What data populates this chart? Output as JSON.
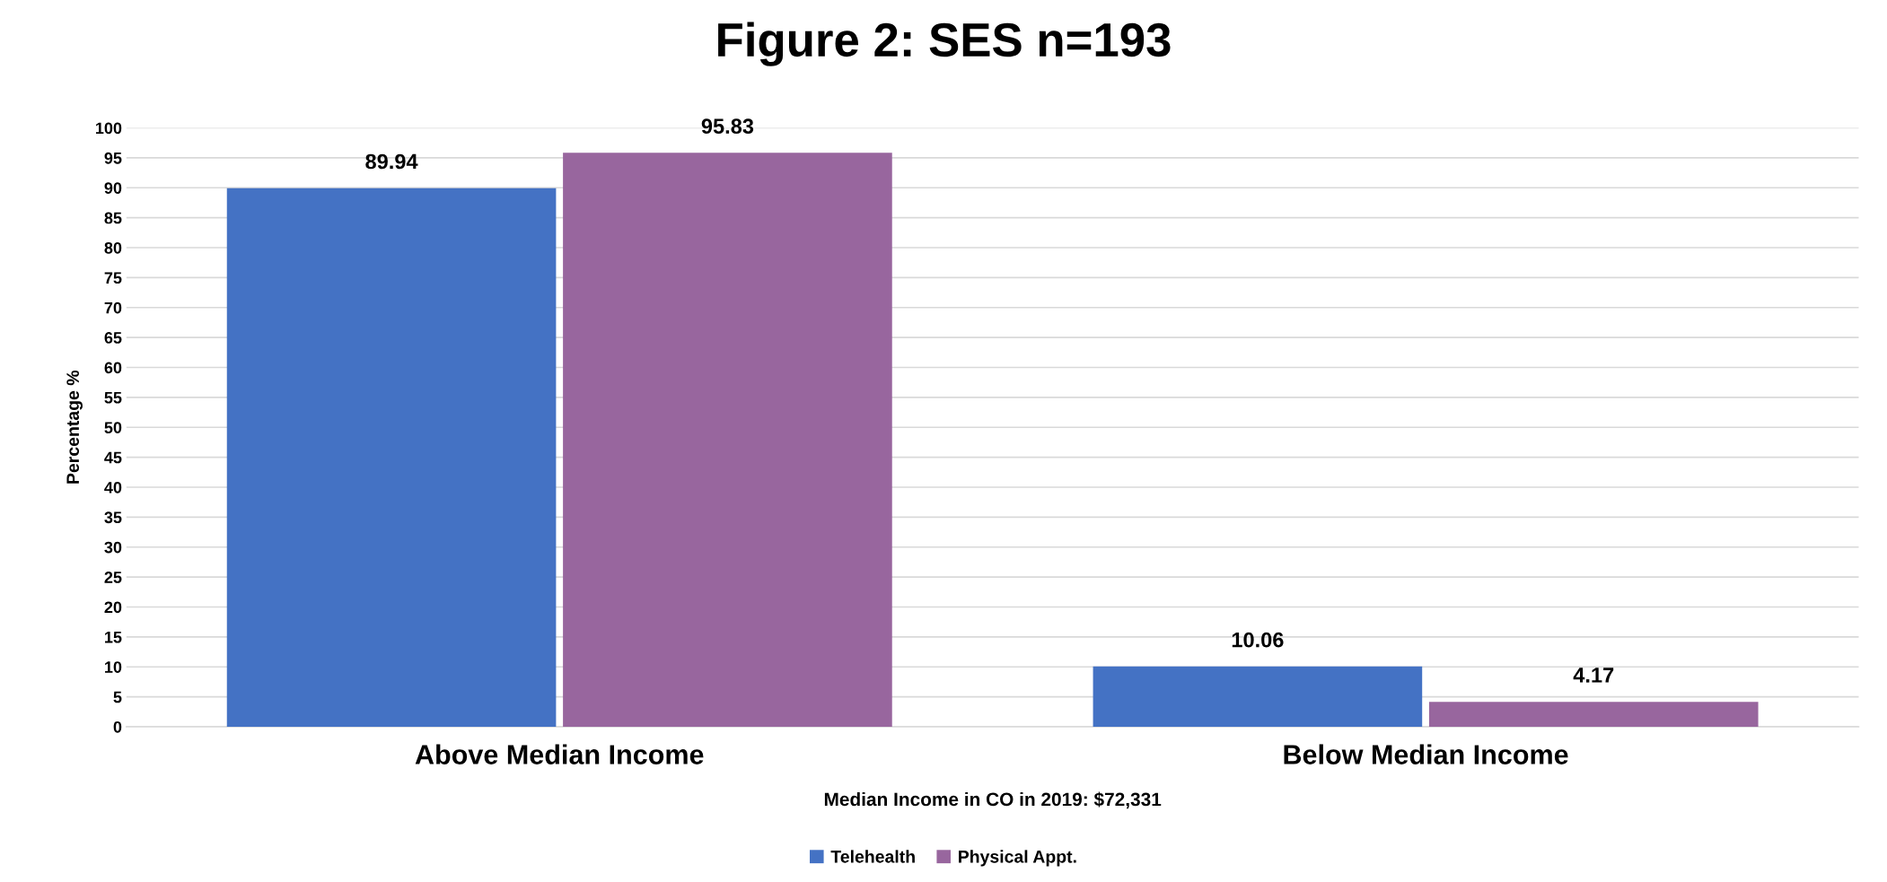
{
  "chart_data": {
    "type": "bar",
    "title": "Figure 2: SES n=193",
    "xlabel": "Median Income in CO in 2019: $72,331",
    "ylabel": "Percentage %",
    "categories": [
      "Above Median Income",
      "Below Median Income"
    ],
    "series": [
      {
        "name": "Telehealth",
        "color": "#4472c4",
        "values": [
          89.94,
          10.06
        ]
      },
      {
        "name": "Physical Appt.",
        "color": "#98669e",
        "values": [
          95.83,
          4.17
        ]
      }
    ],
    "ylim": [
      0,
      100
    ],
    "yticks": [
      0,
      5,
      10,
      15,
      20,
      25,
      30,
      35,
      40,
      45,
      50,
      55,
      60,
      65,
      70,
      75,
      80,
      85,
      90,
      95,
      100
    ],
    "grid": "y",
    "legend": "bottom",
    "data_labels": true
  }
}
